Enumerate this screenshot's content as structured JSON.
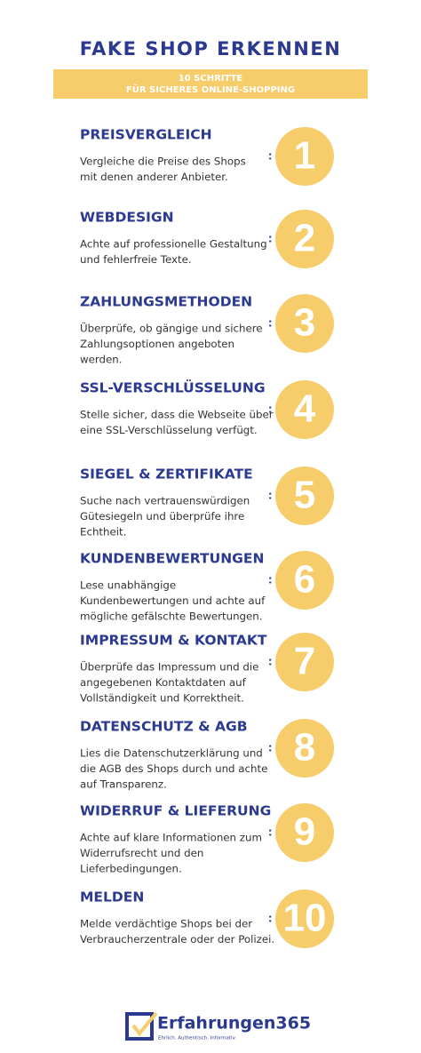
{
  "header": {
    "title": "FAKE SHOP ERKENNEN",
    "banner": [
      "10 SCHRITTE",
      "FÜR SICHERES ONLINE-SHOPPING"
    ]
  },
  "steps": [
    {
      "title": "PREISVERGLEICH",
      "text": [
        "Vergleiche die Preise des Shops",
        "mit denen anderer Anbieter."
      ],
      "number": "1"
    },
    {
      "title": "WEBDESIGN",
      "text": [
        "Achte auf professionelle Gestaltung",
        "und fehlerfreie Texte."
      ],
      "number": "2"
    },
    {
      "title": "ZAHLUNGSMETHODEN",
      "text": [
        "Überprüfe, ob gängige und sichere",
        "Zahlungsoptionen angeboten",
        "werden."
      ],
      "number": "3"
    },
    {
      "title": "SSL-VERSCHLÜSSELUNG",
      "text": [
        "Stelle sicher, dass die Webseite über",
        "eine SSL-Verschlüsselung verfügt."
      ],
      "number": "4"
    },
    {
      "title": "SIEGEL & ZERTIFIKATE",
      "text": [
        "Suche nach vertrauenswürdigen",
        "Gütesiegeln und überprüfe ihre",
        "Echtheit."
      ],
      "number": "5"
    },
    {
      "title": "KUNDENBEWERTUNGEN",
      "text": [
        "Lese unabhängige",
        "Kundenbewertungen und achte auf",
        "mögliche gefälschte Bewertungen."
      ],
      "number": "6"
    },
    {
      "title": "IMPRESSUM & KONTAKT",
      "text": [
        "Überprüfe das Impressum und die",
        "angegebenen Kontaktdaten auf",
        "Vollständigkeit und Korrektheit."
      ],
      "number": "7"
    },
    {
      "title": "DATENSCHUTZ & AGB",
      "text": [
        "Lies die Datenschutzerklärung und",
        "die AGB des Shops durch und achte",
        "auf Transparenz."
      ],
      "number": "8"
    },
    {
      "title": "WIDERRUF & LIEFERUNG",
      "text": [
        "Achte auf klare Informationen zum",
        "Widerrufsrecht und den",
        "Lieferbedingungen."
      ],
      "number": "9"
    },
    {
      "title": "MELDEN",
      "text": [
        "Melde verdächtige Shops bei der",
        "Verbraucherzentrale oder der Polizei."
      ],
      "number": "10"
    }
  ],
  "footer": {
    "brand": "Erfahrungen365",
    "tagline": "Ehrlich. Authentisch. Informativ."
  }
}
